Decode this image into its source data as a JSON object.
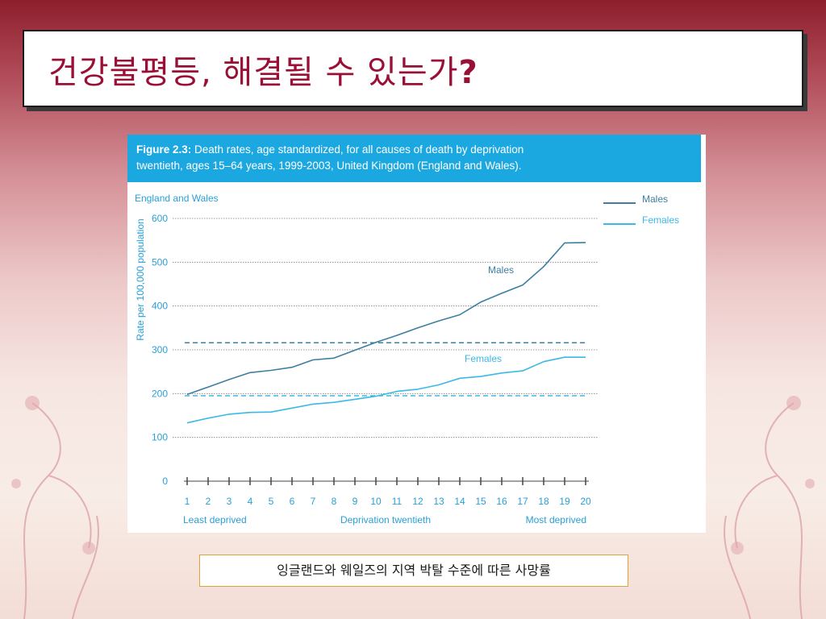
{
  "slide": {
    "title": "건강불평등, 해결될 수 있는가",
    "title_punct": "?",
    "caption": "잉글랜드와 웨일즈의 지역 박탈 수준에 따른 사망률"
  },
  "figure": {
    "label": "Figure 2.3:",
    "heading_line1": " Death rates, age standardized, for all causes of death by deprivation",
    "heading_line2": "twentieth, ages 15–64 years, 1999-2003, United Kingdom (England and Wales).",
    "region_label": "England and Wales"
  },
  "colors": {
    "header": "#1ba7e0",
    "males": "#3c7fa1",
    "females": "#3bb9e6",
    "axis_text": "#2a9fd6",
    "title": "#9a0f35"
  },
  "chart_data": {
    "type": "line",
    "ylabel": "Rate per 100,000 population",
    "xlabel": "Deprivation twentieth",
    "x_end_labels": [
      "Least deprived",
      "Most deprived"
    ],
    "x": [
      1,
      2,
      3,
      4,
      5,
      6,
      7,
      8,
      9,
      10,
      11,
      12,
      13,
      14,
      15,
      16,
      17,
      18,
      19,
      20
    ],
    "ylim": [
      0,
      600
    ],
    "yticks": [
      0,
      100,
      200,
      300,
      400,
      500,
      600
    ],
    "grid": true,
    "legend": "top-right",
    "series": [
      {
        "name": "Males",
        "annotation": "Males",
        "values": [
          198,
          215,
          232,
          248,
          253,
          260,
          277,
          281,
          299,
          317,
          333,
          350,
          366,
          380,
          409,
          429,
          448,
          490,
          544,
          545
        ],
        "reference_line": 316
      },
      {
        "name": "Females",
        "annotation": "Females",
        "values": [
          133,
          144,
          153,
          157,
          158,
          167,
          176,
          180,
          187,
          194,
          205,
          210,
          220,
          235,
          239,
          247,
          252,
          273,
          283,
          283
        ],
        "reference_line": 195
      }
    ]
  }
}
